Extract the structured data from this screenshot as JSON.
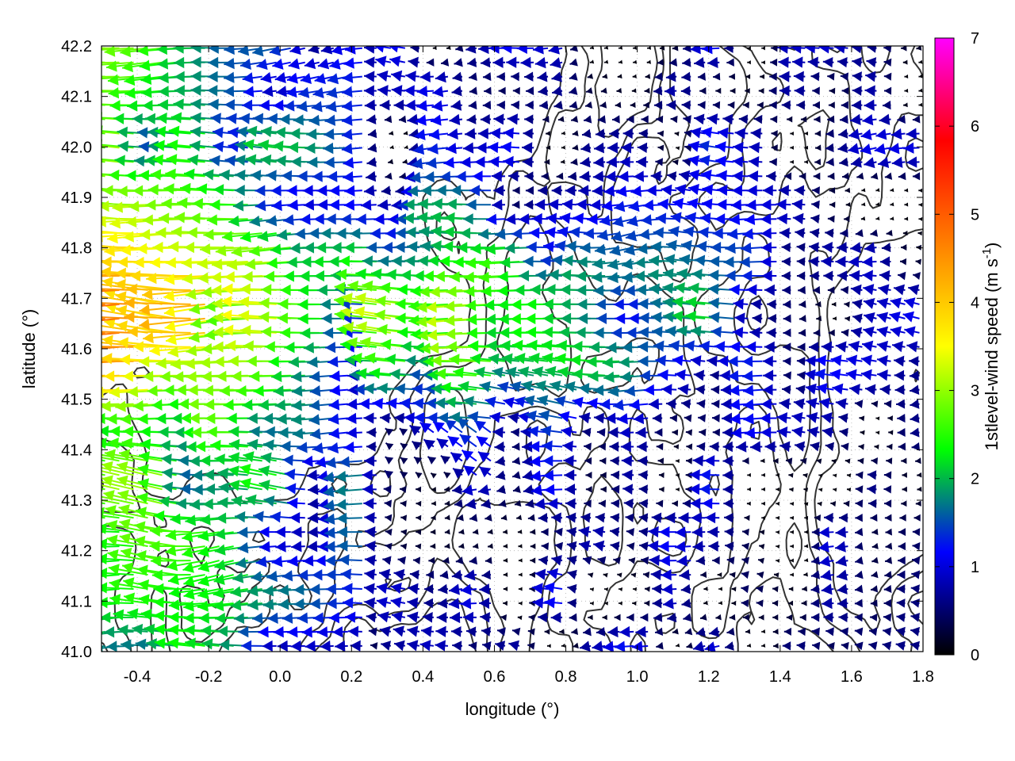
{
  "chart_data": {
    "type": "vector-field",
    "xlabel": "longitude (°)",
    "ylabel": "latitude (°)",
    "colorbar": {
      "label_main": "1stlevel-wind speed (m s",
      "label_sup": "-1",
      "label_end": ")"
    },
    "xlim": [
      -0.5,
      1.8
    ],
    "ylim": [
      41.0,
      42.2
    ],
    "xticks": [
      -0.4,
      -0.2,
      0.0,
      0.2,
      0.4,
      0.6,
      0.8,
      1.0,
      1.2,
      1.4,
      1.6,
      1.8
    ],
    "xtick_labels": [
      "-0.4",
      "-0.2",
      "0.0",
      "0.2",
      "0.4",
      "0.6",
      "0.8",
      "1.0",
      "1.2",
      "1.4",
      "1.6",
      "1.8"
    ],
    "yticks": [
      41.0,
      41.1,
      41.2,
      41.3,
      41.4,
      41.5,
      41.6,
      41.7,
      41.8,
      41.9,
      42.0,
      42.1,
      42.2
    ],
    "ytick_labels": [
      "41.0",
      "41.1",
      "41.2",
      "41.3",
      "41.4",
      "41.5",
      "41.6",
      "41.7",
      "41.8",
      "41.9",
      "42.0",
      "42.1",
      "42.2"
    ],
    "cbrange": [
      0,
      7
    ],
    "cbticks": [
      0,
      1,
      2,
      3,
      4,
      5,
      6,
      7
    ],
    "cbtick_labels": [
      "0",
      "1",
      "2",
      "3",
      "4",
      "5",
      "6",
      "7"
    ],
    "grid": true,
    "palette": [
      "#000000",
      "#0000ff",
      "#00ff00",
      "#ffff00",
      "#ff8000",
      "#ff0000",
      "#ff00ff"
    ],
    "contour_color": "#333333",
    "wind_direction": "mostly westward (easterly flow)",
    "speed_pattern": "3-5 m/s west of 0.2°, 1-3 m/s in central band 41.3-41.9°, below 1 m/s over the east"
  }
}
